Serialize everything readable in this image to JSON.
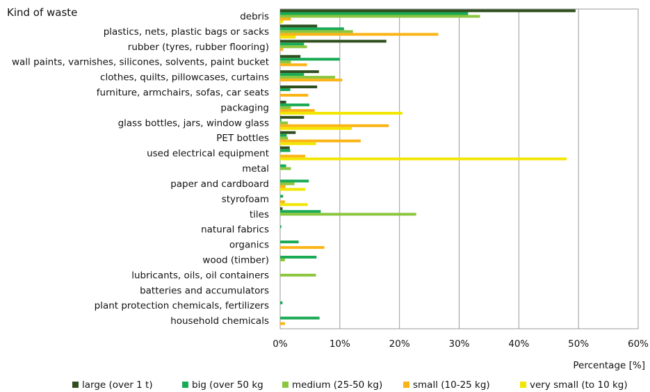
{
  "chart_data": {
    "type": "bar",
    "orientation": "horizontal",
    "title": "Kind of waste",
    "xlabel": "Percentage [%]",
    "xlim": [
      0,
      60
    ],
    "xticks": [
      "0%",
      "10%",
      "20%",
      "30%",
      "40%",
      "50%",
      "60%"
    ],
    "grid": true,
    "legend_position": "bottom",
    "categories": [
      "debris",
      "plastics, nets, plastic bags or sacks",
      "rubber (tyres, rubber flooring)",
      "wall paints, varnishes, silicones, solvents, paint bucket",
      "clothes, quilts, pillowcases, curtains",
      "furniture, armchairs, sofas, car seats",
      "packaging",
      "glass bottles, jars, window glass",
      "PET bottles",
      "used electrical equipment",
      "metal",
      "paper and cardboard",
      "styrofoam",
      "tiles",
      "natural fabrics ",
      "organics ",
      "wood (timber)",
      "lubricants, oils, oil containers",
      "batteries and accumulators",
      "plant protection chemicals, fertilizers",
      "household chemicals"
    ],
    "series": [
      {
        "name": "large (over 1 t)",
        "color": "#2f4f1f",
        "values": [
          49.5,
          6.2,
          17.8,
          3.4,
          6.5,
          6.2,
          1.0,
          4.0,
          2.6,
          1.6,
          0,
          0,
          0,
          0.4,
          0,
          0,
          0,
          0,
          0,
          0,
          0
        ]
      },
      {
        "name": "big (over 50 kg",
        "color": "#1aaa55",
        "values": [
          31.5,
          10.7,
          4.0,
          10.0,
          4.0,
          1.7,
          4.9,
          0.2,
          1.1,
          1.7,
          1.0,
          4.8,
          0.5,
          6.8,
          0.2,
          3.1,
          6.1,
          0,
          0,
          0.4,
          6.6
        ]
      },
      {
        "name": "medium (25-50 kg)",
        "color": "#8cc63f",
        "values": [
          33.5,
          12.2,
          4.5,
          1.8,
          9.2,
          0,
          1.8,
          1.3,
          1.3,
          0,
          1.8,
          2.4,
          0,
          22.8,
          0,
          0,
          0.8,
          6.0,
          0,
          0,
          0
        ]
      },
      {
        "name": "small (10-25 kg)",
        "color": "#fbb415",
        "values": [
          1.8,
          26.5,
          0.5,
          4.5,
          10.4,
          4.7,
          5.8,
          18.2,
          13.5,
          4.2,
          0,
          0.9,
          0.8,
          0,
          0,
          7.4,
          0,
          0,
          0,
          0,
          0.8
        ]
      },
      {
        "name": "very small (to 10 kg)",
        "color": "#f2e600",
        "values": [
          0.5,
          2.6,
          0,
          0,
          0,
          0,
          20.5,
          12.0,
          6.0,
          48.0,
          0,
          4.2,
          4.6,
          0,
          0,
          0,
          0,
          0,
          0,
          0,
          0
        ]
      }
    ]
  }
}
